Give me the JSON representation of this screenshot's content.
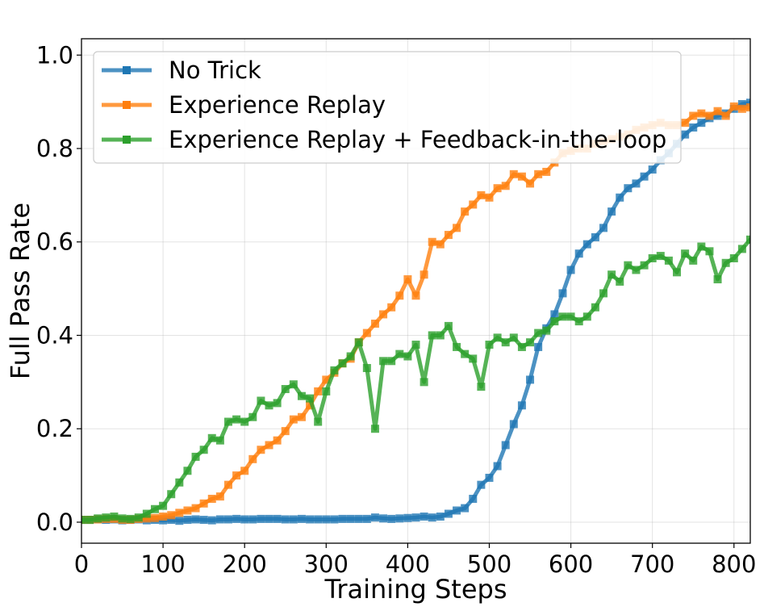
{
  "chart_data": {
    "type": "line",
    "title": "",
    "xlabel": "Training Steps",
    "ylabel": "Full Pass Rate",
    "xlim": [
      0,
      820
    ],
    "ylim": [
      -0.045,
      1.035
    ],
    "xticks": [
      0,
      100,
      200,
      300,
      400,
      500,
      600,
      700,
      800
    ],
    "yticks": [
      0.0,
      0.2,
      0.4,
      0.6,
      0.8,
      1.0
    ],
    "xtick_labels": [
      "0",
      "100",
      "200",
      "300",
      "400",
      "500",
      "600",
      "700",
      "800"
    ],
    "ytick_labels": [
      "0.0",
      "0.2",
      "0.4",
      "0.6",
      "0.8",
      "1.0"
    ],
    "grid": true,
    "legend_position": "top-left",
    "x": [
      0,
      10,
      20,
      30,
      40,
      50,
      60,
      70,
      80,
      90,
      100,
      110,
      120,
      130,
      140,
      150,
      160,
      170,
      180,
      190,
      200,
      210,
      220,
      230,
      240,
      250,
      260,
      270,
      280,
      290,
      300,
      310,
      320,
      330,
      340,
      350,
      360,
      370,
      380,
      390,
      400,
      410,
      420,
      430,
      440,
      450,
      460,
      470,
      480,
      490,
      500,
      510,
      520,
      530,
      540,
      550,
      560,
      570,
      580,
      590,
      600,
      610,
      620,
      630,
      640,
      650,
      660,
      670,
      680,
      690,
      700,
      710,
      720,
      730,
      740,
      750,
      760,
      770,
      780,
      790,
      800,
      810,
      820
    ],
    "series": [
      {
        "name": "No Trick",
        "color": "#1f77b4",
        "values": [
          0.005,
          0.005,
          0.006,
          0.005,
          0.006,
          0.004,
          0.005,
          0.006,
          0.004,
          0.005,
          0.004,
          0.005,
          0.003,
          0.005,
          0.006,
          0.005,
          0.004,
          0.006,
          0.006,
          0.007,
          0.006,
          0.006,
          0.007,
          0.007,
          0.007,
          0.006,
          0.006,
          0.007,
          0.006,
          0.006,
          0.006,
          0.006,
          0.007,
          0.007,
          0.007,
          0.007,
          0.01,
          0.008,
          0.007,
          0.008,
          0.009,
          0.01,
          0.012,
          0.01,
          0.012,
          0.018,
          0.025,
          0.03,
          0.05,
          0.08,
          0.095,
          0.12,
          0.165,
          0.21,
          0.25,
          0.305,
          0.375,
          0.415,
          0.445,
          0.49,
          0.54,
          0.575,
          0.595,
          0.61,
          0.63,
          0.665,
          0.695,
          0.715,
          0.725,
          0.74,
          0.755,
          0.775,
          0.79,
          0.81,
          0.83,
          0.845,
          0.855,
          0.865,
          0.87,
          0.875,
          0.885,
          0.895,
          0.898
        ]
      },
      {
        "name": "Experience Replay",
        "color": "#ff7f0e",
        "values": [
          0.005,
          0.005,
          0.006,
          0.007,
          0.007,
          0.005,
          0.005,
          0.007,
          0.008,
          0.009,
          0.012,
          0.015,
          0.02,
          0.025,
          0.03,
          0.04,
          0.05,
          0.055,
          0.08,
          0.1,
          0.11,
          0.135,
          0.155,
          0.165,
          0.175,
          0.195,
          0.22,
          0.225,
          0.25,
          0.28,
          0.305,
          0.32,
          0.34,
          0.35,
          0.385,
          0.405,
          0.425,
          0.445,
          0.46,
          0.485,
          0.52,
          0.485,
          0.53,
          0.6,
          0.595,
          0.615,
          0.63,
          0.665,
          0.68,
          0.7,
          0.695,
          0.715,
          0.72,
          0.745,
          0.74,
          0.725,
          0.745,
          0.75,
          0.77,
          0.79,
          0.795,
          0.8,
          0.8,
          0.81,
          0.815,
          0.82,
          0.825,
          0.83,
          0.84,
          0.845,
          0.85,
          0.855,
          0.85,
          0.85,
          0.855,
          0.87,
          0.875,
          0.87,
          0.88,
          0.87,
          0.89,
          0.885,
          0.888
        ]
      },
      {
        "name": "Experience Replay + Feedback-in-the-loop",
        "color": "#2ca02c",
        "values": [
          0.005,
          0.005,
          0.008,
          0.01,
          0.012,
          0.008,
          0.007,
          0.01,
          0.018,
          0.028,
          0.035,
          0.06,
          0.085,
          0.11,
          0.14,
          0.155,
          0.18,
          0.175,
          0.215,
          0.22,
          0.215,
          0.225,
          0.26,
          0.25,
          0.255,
          0.285,
          0.295,
          0.27,
          0.265,
          0.215,
          0.28,
          0.325,
          0.34,
          0.355,
          0.385,
          0.33,
          0.2,
          0.345,
          0.345,
          0.36,
          0.355,
          0.38,
          0.3,
          0.4,
          0.4,
          0.42,
          0.375,
          0.36,
          0.35,
          0.29,
          0.38,
          0.395,
          0.385,
          0.395,
          0.375,
          0.385,
          0.405,
          0.41,
          0.43,
          0.44,
          0.44,
          0.43,
          0.44,
          0.46,
          0.49,
          0.53,
          0.515,
          0.55,
          0.54,
          0.55,
          0.565,
          0.57,
          0.56,
          0.535,
          0.575,
          0.56,
          0.59,
          0.58,
          0.52,
          0.555,
          0.565,
          0.585,
          0.605
        ]
      }
    ]
  }
}
